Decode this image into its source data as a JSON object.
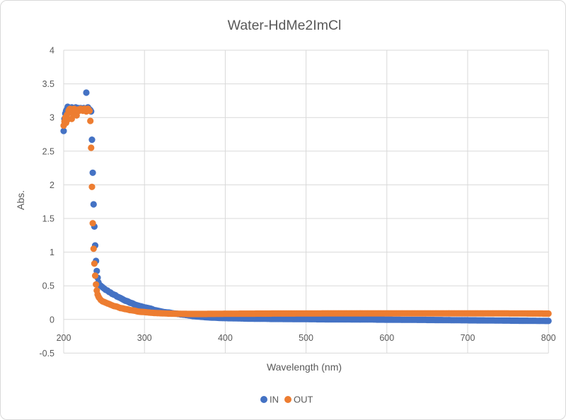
{
  "chart_data": {
    "type": "scatter",
    "title": "Water-HdMe2ImCl",
    "xlabel": "Wavelength (nm)",
    "ylabel": "Abs.",
    "xlim": [
      200,
      800
    ],
    "ylim": [
      -0.5,
      4
    ],
    "x_ticks": [
      200,
      300,
      400,
      500,
      600,
      700,
      800
    ],
    "y_ticks": [
      -0.5,
      0,
      0.5,
      1,
      1.5,
      2,
      2.5,
      3,
      3.5,
      4
    ],
    "grid": true,
    "legend_position": "bottom-center",
    "marker": "circle",
    "colors": {
      "text": "#595959",
      "gridline": "#d9d9d9",
      "background": "#ffffff"
    },
    "series": [
      {
        "name": "IN",
        "color": "#4472C4",
        "points": [
          [
            200,
            2.8
          ],
          [
            201,
            2.98
          ],
          [
            202,
            3.06
          ],
          [
            203,
            3.1
          ],
          [
            204,
            3.12
          ],
          [
            205,
            3.16
          ],
          [
            206,
            3.14
          ],
          [
            207,
            3.13
          ],
          [
            208,
            3.12
          ],
          [
            209,
            3.14
          ],
          [
            210,
            3.15
          ],
          [
            211,
            3.13
          ],
          [
            212,
            3.14
          ],
          [
            213,
            3.12
          ],
          [
            214,
            3.13
          ],
          [
            215,
            3.15
          ],
          [
            216,
            3.13
          ],
          [
            217,
            3.12
          ],
          [
            218,
            3.14
          ],
          [
            219,
            3.13
          ],
          [
            220,
            3.12
          ],
          [
            221,
            3.14
          ],
          [
            222,
            3.13
          ],
          [
            223,
            3.12
          ],
          [
            224,
            3.13
          ],
          [
            225,
            3.14
          ],
          [
            226,
            3.12
          ],
          [
            227,
            3.13
          ],
          [
            228,
            3.37
          ],
          [
            229,
            3.14
          ],
          [
            230,
            3.15
          ],
          [
            231,
            3.13
          ],
          [
            232,
            3.12
          ],
          [
            233,
            3.11
          ],
          [
            234,
            3.09
          ],
          [
            235,
            2.67
          ],
          [
            236,
            2.18
          ],
          [
            237,
            1.71
          ],
          [
            238,
            1.38
          ],
          [
            239,
            1.1
          ],
          [
            240,
            0.87
          ],
          [
            241,
            0.72
          ],
          [
            242,
            0.62
          ],
          [
            243,
            0.55
          ],
          [
            244,
            0.52
          ],
          [
            246,
            0.5
          ],
          [
            248,
            0.48
          ],
          [
            250,
            0.46
          ],
          [
            252,
            0.44
          ],
          [
            254,
            0.43
          ],
          [
            256,
            0.41
          ],
          [
            258,
            0.4
          ],
          [
            260,
            0.38
          ],
          [
            262,
            0.37
          ],
          [
            264,
            0.36
          ],
          [
            266,
            0.34
          ],
          [
            268,
            0.33
          ],
          [
            270,
            0.32
          ],
          [
            273,
            0.3
          ],
          [
            276,
            0.28
          ],
          [
            279,
            0.27
          ],
          [
            282,
            0.25
          ],
          [
            285,
            0.24
          ],
          [
            288,
            0.22
          ],
          [
            291,
            0.21
          ],
          [
            294,
            0.2
          ],
          [
            297,
            0.19
          ],
          [
            300,
            0.18
          ],
          [
            304,
            0.17
          ],
          [
            308,
            0.16
          ],
          [
            312,
            0.14
          ],
          [
            316,
            0.13
          ],
          [
            320,
            0.12
          ],
          [
            324,
            0.11
          ],
          [
            328,
            0.105
          ],
          [
            332,
            0.1
          ],
          [
            336,
            0.09
          ],
          [
            340,
            0.085
          ],
          [
            345,
            0.075
          ],
          [
            350,
            0.07
          ],
          [
            355,
            0.06
          ],
          [
            360,
            0.05
          ],
          [
            365,
            0.045
          ],
          [
            370,
            0.04
          ],
          [
            375,
            0.035
          ],
          [
            380,
            0.03
          ],
          [
            385,
            0.028
          ],
          [
            390,
            0.025
          ],
          [
            395,
            0.022
          ],
          [
            400,
            0.02
          ],
          [
            410,
            0.018
          ],
          [
            420,
            0.015
          ],
          [
            430,
            0.012
          ],
          [
            440,
            0.01
          ],
          [
            450,
            0.01
          ],
          [
            460,
            0.008
          ],
          [
            470,
            0.008
          ],
          [
            480,
            0.006
          ],
          [
            490,
            0.005
          ],
          [
            500,
            0.005
          ],
          [
            510,
            0.004
          ],
          [
            520,
            0.003
          ],
          [
            530,
            0.002
          ],
          [
            540,
            0.002
          ],
          [
            550,
            0.001
          ],
          [
            560,
            0.0
          ],
          [
            570,
            0.0
          ],
          [
            580,
            0.0
          ],
          [
            590,
            -0.002
          ],
          [
            600,
            -0.003
          ],
          [
            610,
            -0.004
          ],
          [
            620,
            -0.005
          ],
          [
            630,
            -0.005
          ],
          [
            640,
            -0.006
          ],
          [
            650,
            -0.007
          ],
          [
            660,
            -0.008
          ],
          [
            670,
            -0.009
          ],
          [
            680,
            -0.01
          ],
          [
            690,
            -0.011
          ],
          [
            700,
            -0.012
          ],
          [
            710,
            -0.013
          ],
          [
            720,
            -0.014
          ],
          [
            730,
            -0.015
          ],
          [
            740,
            -0.016
          ],
          [
            750,
            -0.017
          ],
          [
            760,
            -0.018
          ],
          [
            770,
            -0.019
          ],
          [
            780,
            -0.02
          ],
          [
            790,
            -0.021
          ],
          [
            800,
            -0.022
          ]
        ]
      },
      {
        "name": "OUT",
        "color": "#ED7D31",
        "points": [
          [
            200,
            2.88
          ],
          [
            201,
            2.94
          ],
          [
            202,
            3.0
          ],
          [
            203,
            2.92
          ],
          [
            204,
            3.04
          ],
          [
            205,
            2.97
          ],
          [
            206,
            3.1
          ],
          [
            207,
            3.12
          ],
          [
            208,
            3.13
          ],
          [
            209,
            3.11
          ],
          [
            210,
            2.98
          ],
          [
            211,
            3.06
          ],
          [
            212,
            3.11
          ],
          [
            213,
            3.13
          ],
          [
            214,
            3.12
          ],
          [
            215,
            3.1
          ],
          [
            216,
            3.03
          ],
          [
            217,
            3.11
          ],
          [
            218,
            3.12
          ],
          [
            219,
            3.1
          ],
          [
            220,
            3.12
          ],
          [
            221,
            3.13
          ],
          [
            222,
            3.11
          ],
          [
            223,
            3.12
          ],
          [
            224,
            3.1
          ],
          [
            225,
            3.12
          ],
          [
            226,
            3.13
          ],
          [
            227,
            3.11
          ],
          [
            228,
            3.09
          ],
          [
            229,
            3.12
          ],
          [
            230,
            3.13
          ],
          [
            231,
            3.11
          ],
          [
            232,
            3.1
          ],
          [
            233,
            2.95
          ],
          [
            234,
            2.55
          ],
          [
            235,
            1.97
          ],
          [
            236,
            1.43
          ],
          [
            237,
            1.05
          ],
          [
            238,
            0.83
          ],
          [
            239,
            0.65
          ],
          [
            240,
            0.52
          ],
          [
            241,
            0.43
          ],
          [
            242,
            0.37
          ],
          [
            243,
            0.34
          ],
          [
            244,
            0.32
          ],
          [
            246,
            0.29
          ],
          [
            248,
            0.27
          ],
          [
            250,
            0.26
          ],
          [
            252,
            0.25
          ],
          [
            254,
            0.24
          ],
          [
            256,
            0.23
          ],
          [
            258,
            0.22
          ],
          [
            260,
            0.21
          ],
          [
            262,
            0.2
          ],
          [
            264,
            0.195
          ],
          [
            266,
            0.19
          ],
          [
            268,
            0.18
          ],
          [
            270,
            0.17
          ],
          [
            273,
            0.165
          ],
          [
            276,
            0.155
          ],
          [
            279,
            0.15
          ],
          [
            282,
            0.14
          ],
          [
            285,
            0.135
          ],
          [
            288,
            0.13
          ],
          [
            291,
            0.12
          ],
          [
            294,
            0.115
          ],
          [
            297,
            0.112
          ],
          [
            300,
            0.11
          ],
          [
            304,
            0.105
          ],
          [
            308,
            0.1
          ],
          [
            312,
            0.097
          ],
          [
            316,
            0.094
          ],
          [
            320,
            0.092
          ],
          [
            324,
            0.09
          ],
          [
            328,
            0.088
          ],
          [
            332,
            0.087
          ],
          [
            336,
            0.086
          ],
          [
            340,
            0.085
          ],
          [
            345,
            0.084
          ],
          [
            350,
            0.083
          ],
          [
            355,
            0.082
          ],
          [
            360,
            0.082
          ],
          [
            365,
            0.082
          ],
          [
            370,
            0.082
          ],
          [
            375,
            0.082
          ],
          [
            380,
            0.083
          ],
          [
            385,
            0.083
          ],
          [
            390,
            0.084
          ],
          [
            395,
            0.084
          ],
          [
            400,
            0.085
          ],
          [
            410,
            0.085
          ],
          [
            420,
            0.086
          ],
          [
            430,
            0.086
          ],
          [
            440,
            0.087
          ],
          [
            450,
            0.087
          ],
          [
            460,
            0.088
          ],
          [
            470,
            0.088
          ],
          [
            480,
            0.088
          ],
          [
            490,
            0.089
          ],
          [
            500,
            0.089
          ],
          [
            510,
            0.089
          ],
          [
            520,
            0.09
          ],
          [
            530,
            0.09
          ],
          [
            540,
            0.09
          ],
          [
            550,
            0.09
          ],
          [
            560,
            0.09
          ],
          [
            570,
            0.09
          ],
          [
            580,
            0.09
          ],
          [
            590,
            0.09
          ],
          [
            600,
            0.09
          ],
          [
            610,
            0.09
          ],
          [
            620,
            0.09
          ],
          [
            630,
            0.09
          ],
          [
            640,
            0.09
          ],
          [
            650,
            0.09
          ],
          [
            660,
            0.09
          ],
          [
            670,
            0.09
          ],
          [
            680,
            0.09
          ],
          [
            690,
            0.09
          ],
          [
            700,
            0.09
          ],
          [
            710,
            0.09
          ],
          [
            720,
            0.09
          ],
          [
            730,
            0.09
          ],
          [
            740,
            0.09
          ],
          [
            750,
            0.09
          ],
          [
            760,
            0.089
          ],
          [
            770,
            0.089
          ],
          [
            780,
            0.088
          ],
          [
            790,
            0.088
          ],
          [
            800,
            0.087
          ]
        ]
      }
    ]
  }
}
